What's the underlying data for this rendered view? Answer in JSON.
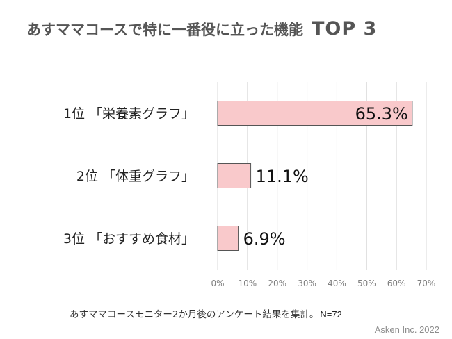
{
  "chart_data": {
    "type": "bar",
    "orientation": "horizontal",
    "title": "あすママコースで特に一番役に立った機能",
    "title_tag": "TOP 3",
    "categories": [
      "1位 「栄養素グラフ」",
      "2位 「体重グラフ」",
      "3位 「おすすめ食材」"
    ],
    "values": [
      65.3,
      11.1,
      6.9
    ],
    "value_labels": [
      "65.3%",
      "11.1%",
      "6.9%"
    ],
    "xlim": [
      0,
      70
    ],
    "x_ticks": [
      "0%",
      "10%",
      "20%",
      "30%",
      "40%",
      "50%",
      "60%",
      "70%"
    ],
    "grid": "vertical",
    "bar_color": "#f9c9cb",
    "bar_edge_color": "#555555",
    "grid_color": "#d9d9d9"
  },
  "footnote": "あすママコースモニター2か月後のアンケート結果を集計。",
  "footnote_n": "N=72",
  "credit": "Asken Inc. 2022"
}
